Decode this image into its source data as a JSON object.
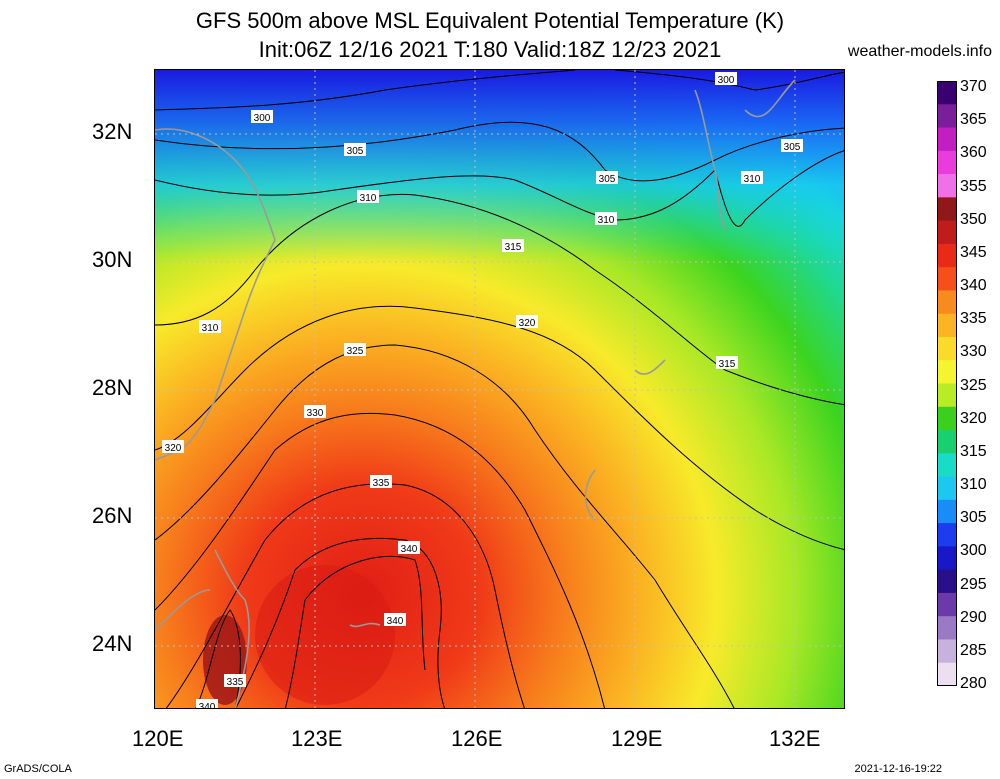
{
  "title_line1": "GFS 500m above MSL Equivalent Potential Temperature (K)",
  "title_line2": "Init:06Z 12/16 2021 T:180 Valid:18Z 12/23 2021",
  "site": "weather-models.info",
  "lat_ticks": [
    "32N",
    "30N",
    "28N",
    "26N",
    "24N"
  ],
  "lon_ticks": [
    "120E",
    "123E",
    "126E",
    "129E",
    "132E"
  ],
  "footer_left": "GrADS/COLA",
  "footer_right": "2021-12-16-19:22",
  "colorbar": {
    "labels": [
      "370",
      "365",
      "360",
      "355",
      "350",
      "345",
      "340",
      "335",
      "330",
      "325",
      "320",
      "315",
      "310",
      "305",
      "300",
      "295",
      "290",
      "285",
      "280"
    ],
    "colors": [
      "#3a0070",
      "#7a1e9a",
      "#c21ec2",
      "#e83cdc",
      "#f070e8",
      "#901818",
      "#c01c1c",
      "#e82a16",
      "#f5501a",
      "#f88a1e",
      "#fbb424",
      "#fadb2a",
      "#f6f42e",
      "#b8ec24",
      "#3cd01e",
      "#18d070",
      "#18dcc8",
      "#1cc8f0",
      "#1a8cf8",
      "#1c3cf0",
      "#1818c8",
      "#2a0f8a",
      "#6a3aa8",
      "#9a7ac4",
      "#c6b2dc",
      "#ecdff0"
    ]
  },
  "contour_labels": [
    {
      "text": "300"
    },
    {
      "text": "300"
    },
    {
      "text": "305"
    },
    {
      "text": "305"
    },
    {
      "text": "305"
    },
    {
      "text": "310"
    },
    {
      "text": "310"
    },
    {
      "text": "310"
    },
    {
      "text": "310"
    },
    {
      "text": "315"
    },
    {
      "text": "315"
    },
    {
      "text": "320"
    },
    {
      "text": "320"
    },
    {
      "text": "325"
    },
    {
      "text": "330"
    },
    {
      "text": "335"
    },
    {
      "text": "335"
    },
    {
      "text": "340"
    },
    {
      "text": "340"
    },
    {
      "text": "340"
    }
  ]
}
